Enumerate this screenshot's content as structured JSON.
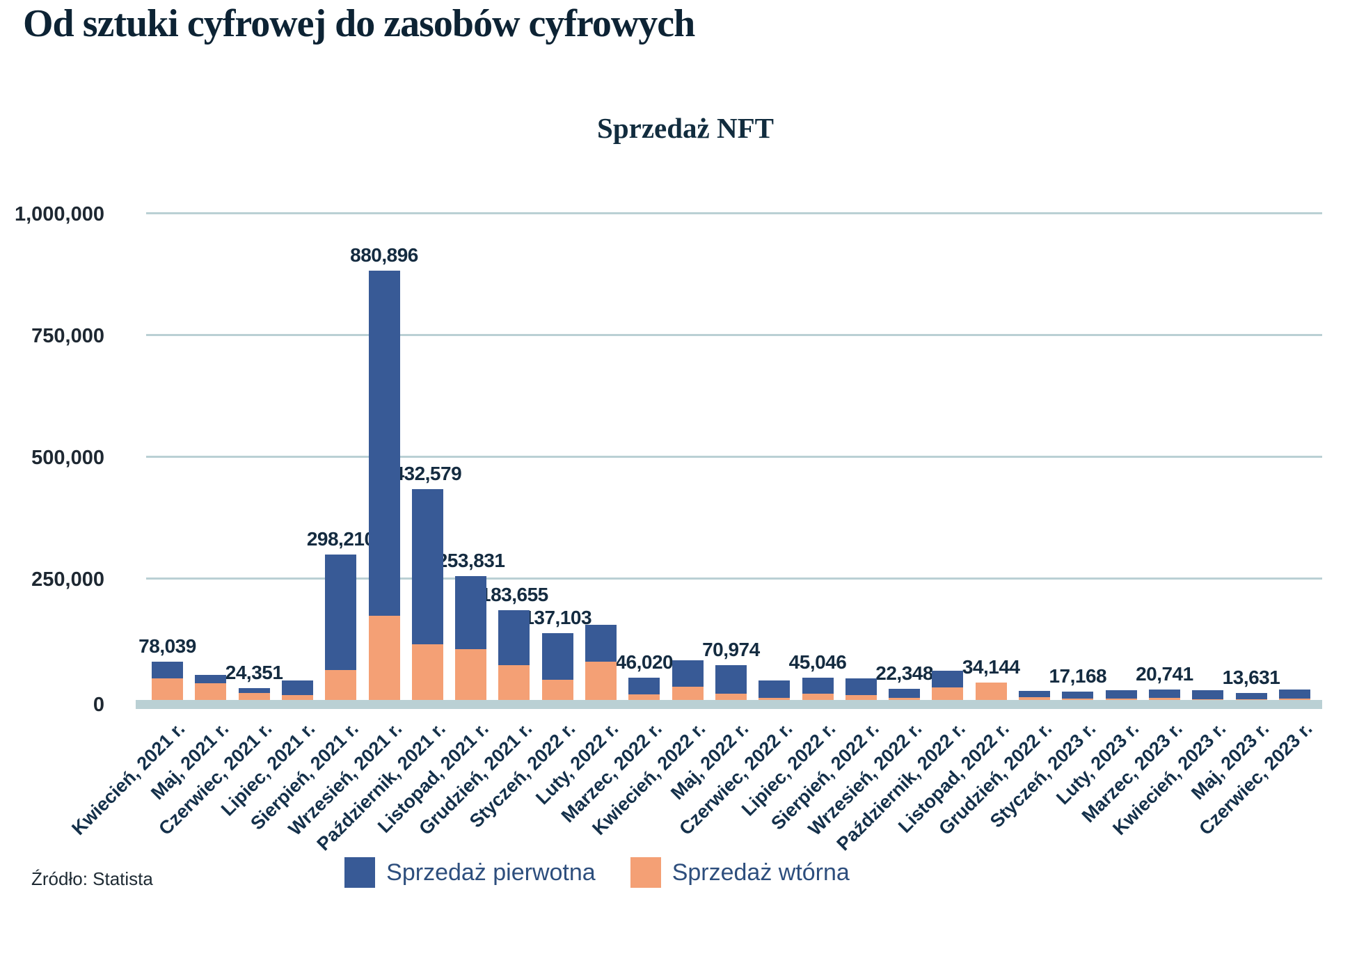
{
  "page": {
    "title": "Od sztuki cyfrowej do zasobów cyfrowych",
    "source": "Źródło: Statista"
  },
  "colors": {
    "primary_bar": "#385a96",
    "secondary_bar": "#f4a075",
    "gridline": "#bad0d4",
    "title_text": "#0d2334",
    "value_label_text": "#142b40",
    "axis_label_text": "#14304a",
    "legend_text": "#2d4e7d"
  },
  "chart_data": {
    "type": "bar",
    "title": "Sprzedaż NFT",
    "stacking": "overlay",
    "grid": true,
    "legend_position": "bottom",
    "xlabel": "",
    "ylabel": "",
    "ylim": [
      0,
      1000000
    ],
    "yticks": [
      {
        "value": 1000000,
        "label": "1,000,000"
      },
      {
        "value": 750000,
        "label": "750,000"
      },
      {
        "value": 500000,
        "label": "500,000"
      },
      {
        "value": 250000,
        "label": "250,000"
      },
      {
        "value": 0,
        "label": "0"
      }
    ],
    "categories": [
      "Kwiecień, 2021 r.",
      "Maj, 2021 r.",
      "Czerwiec, 2021 r.",
      "Lipiec, 2021 r.",
      "Sierpień, 2021 r.",
      "Wrzesień, 2021 r.",
      "Październik, 2021 r.",
      "Listopad, 2021 r.",
      "Grudzień, 2021 r.",
      "Styczeń, 2022 r.",
      "Luty, 2022 r.",
      "Marzec, 2022 r.",
      "Kwiecień, 2022 r.",
      "Maj, 2022 r.",
      "Czerwiec, 2022 r.",
      "Lipiec, 2022 r.",
      "Sierpień, 2022 r.",
      "Wrzesień, 2022 r.",
      "Październik, 2022 r.",
      "Listopad, 2022 r.",
      "Grudzień, 2022 r.",
      "Styczeń, 2023 r.",
      "Luty, 2023 r.",
      "Marzec, 2023 r.",
      "Kwiecień, 2023 r.",
      "Maj, 2023 r.",
      "Czerwiec, 2023 r."
    ],
    "series": [
      {
        "name": "Sprzedaż pierwotna",
        "color": "#385a96",
        "values": [
          78039,
          51000,
          24351,
          40000,
          298210,
          880896,
          432579,
          253831,
          183655,
          137103,
          155000,
          46020,
          81000,
          70974,
          40000,
          45046,
          45000,
          22348,
          60000,
          34144,
          18000,
          17168,
          20000,
          20741,
          19500,
          13631,
          21000
        ]
      },
      {
        "name": "Sprzedaż wtórna",
        "color": "#f4a075",
        "values": [
          44000,
          34000,
          14000,
          10000,
          61000,
          173000,
          115000,
          104000,
          71000,
          41000,
          79000,
          11000,
          27000,
          13000,
          5000,
          13000,
          10000,
          4000,
          26000,
          36000,
          6000,
          3000,
          3000,
          5000,
          2000,
          2000,
          3000
        ]
      }
    ],
    "bar_value_labels": [
      "78,039",
      null,
      "24,351",
      null,
      "298,210",
      "880,896",
      "432,579",
      "253,831",
      "183,655",
      "137,103",
      null,
      "46,020",
      null,
      "70,974",
      null,
      "45,046",
      null,
      "22,348",
      null,
      "34,144",
      null,
      "17,168",
      null,
      "20,741",
      null,
      "13,631",
      null
    ]
  }
}
